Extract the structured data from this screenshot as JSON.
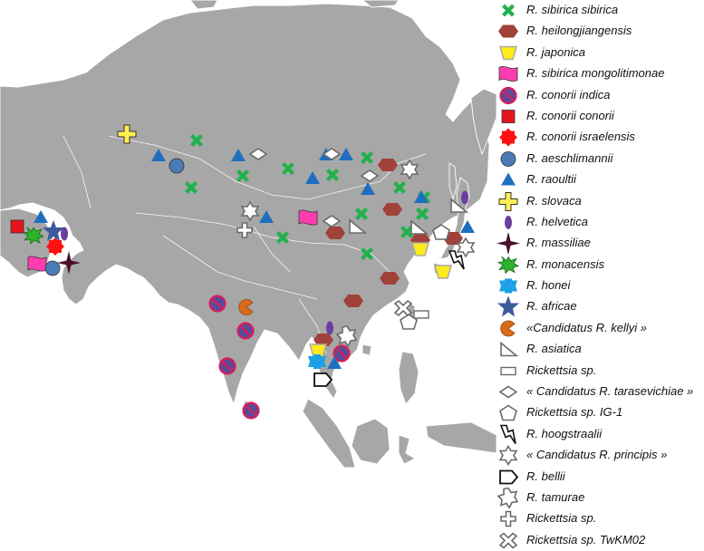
{
  "colors": {
    "land": "#a7a7a7",
    "border": "#ffffff",
    "background": "#ffffff",
    "sibirica_sibirica": "#22b14c",
    "heilongjiangensis": "#a0413a",
    "japonica": "#ffeb1c",
    "mongolitimonae": "#ff3db0",
    "conorii_indica": "#5b4a99",
    "conorii_indica_ring": "#d81e5b",
    "conorii_conorii": "#e8141c",
    "israelensis": "#ff1111",
    "aeschlimannii": "#4a7bb7",
    "raoultii": "#1f6fbf",
    "slovaca": "#fff050",
    "helvetica": "#6a3fa0",
    "massiliae": "#4a0f2b",
    "monacensis": "#2db32d",
    "honei": "#1ea0e6",
    "africae": "#3a5a9c",
    "kellyi": "#d86a1c",
    "outline": "#6a6a6a"
  },
  "legend": [
    {
      "symbol": "cross-x",
      "label": "R. sibirica sibirica"
    },
    {
      "symbol": "hexagon",
      "label": "R. heilongjiangensis"
    },
    {
      "symbol": "trapezoid",
      "label": "R. japonica"
    },
    {
      "symbol": "flag",
      "label": "R. sibirica mongolitimonae"
    },
    {
      "symbol": "no-circle",
      "label": "R. conorii indica"
    },
    {
      "symbol": "square",
      "label": "R. conorii conorii"
    },
    {
      "symbol": "burst",
      "label": "R. conorii israelensis"
    },
    {
      "symbol": "circle",
      "label": "R. aeschlimannii"
    },
    {
      "symbol": "triangle",
      "label": "R. raoultii"
    },
    {
      "symbol": "plus-yellow",
      "label": "R. slovaca"
    },
    {
      "symbol": "oval",
      "label": "R. helvetica"
    },
    {
      "symbol": "star4",
      "label": "R. massiliae"
    },
    {
      "symbol": "explosion",
      "label": "R. monacensis"
    },
    {
      "symbol": "ribbon",
      "label": "R. honei"
    },
    {
      "symbol": "star5",
      "label": "R. africae"
    },
    {
      "symbol": "pacman",
      "label": "«Candidatus R. kellyi »"
    },
    {
      "symbol": "right-triangle",
      "label": "R. asiatica"
    },
    {
      "symbol": "rect",
      "label": "Rickettsia sp."
    },
    {
      "symbol": "diamond",
      "label": "« Candidatus R. tarasevichiae »"
    },
    {
      "symbol": "pentagon",
      "label": "Rickettsia sp. IG-1"
    },
    {
      "symbol": "bolt",
      "label": "R. hoogstraalii"
    },
    {
      "symbol": "star6",
      "label": "« Candidatus R. principis »"
    },
    {
      "symbol": "pentagon-arrow",
      "label": "R. bellii"
    },
    {
      "symbol": "star7",
      "label": "R. tamurae"
    },
    {
      "symbol": "plus-white",
      "label": "Rickettsia sp."
    },
    {
      "symbol": "cross-white",
      "label": "Rickettsia sp. TwKM02"
    }
  ]
}
